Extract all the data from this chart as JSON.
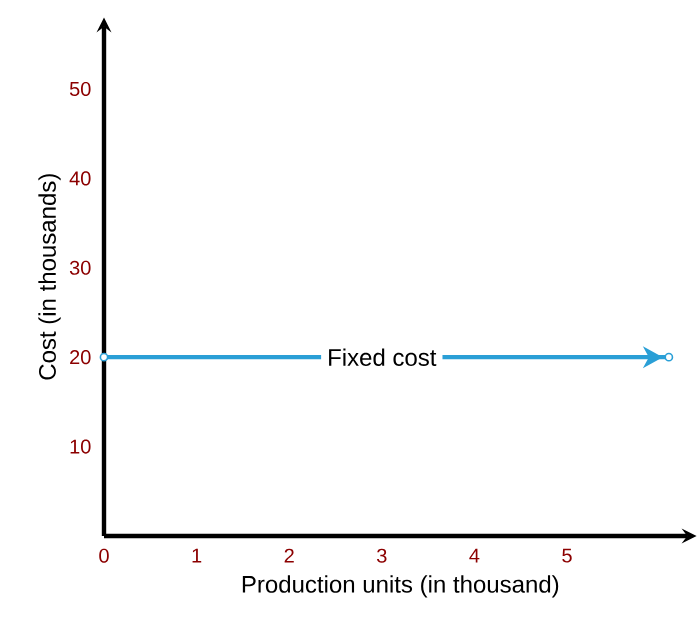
{
  "chart_data": {
    "type": "line",
    "xlabel": "Production units (in thousand)",
    "ylabel": "Cost (in thousands)",
    "x": [
      0,
      6.1
    ],
    "series": [
      {
        "color": "#2a9fd6",
        "values": [
          20,
          20
        ]
      }
    ],
    "xlim": [
      0,
      6.4
    ],
    "ylim": [
      0,
      58
    ],
    "xticks": [
      0,
      1,
      2,
      3,
      4,
      5
    ],
    "yticks": [
      10,
      20,
      30,
      40,
      50
    ],
    "marker": "circle",
    "line_style": "solid",
    "grid": false,
    "annotations": [
      {
        "text": "Fixed cost",
        "x": 3,
        "y": 20
      }
    ]
  }
}
